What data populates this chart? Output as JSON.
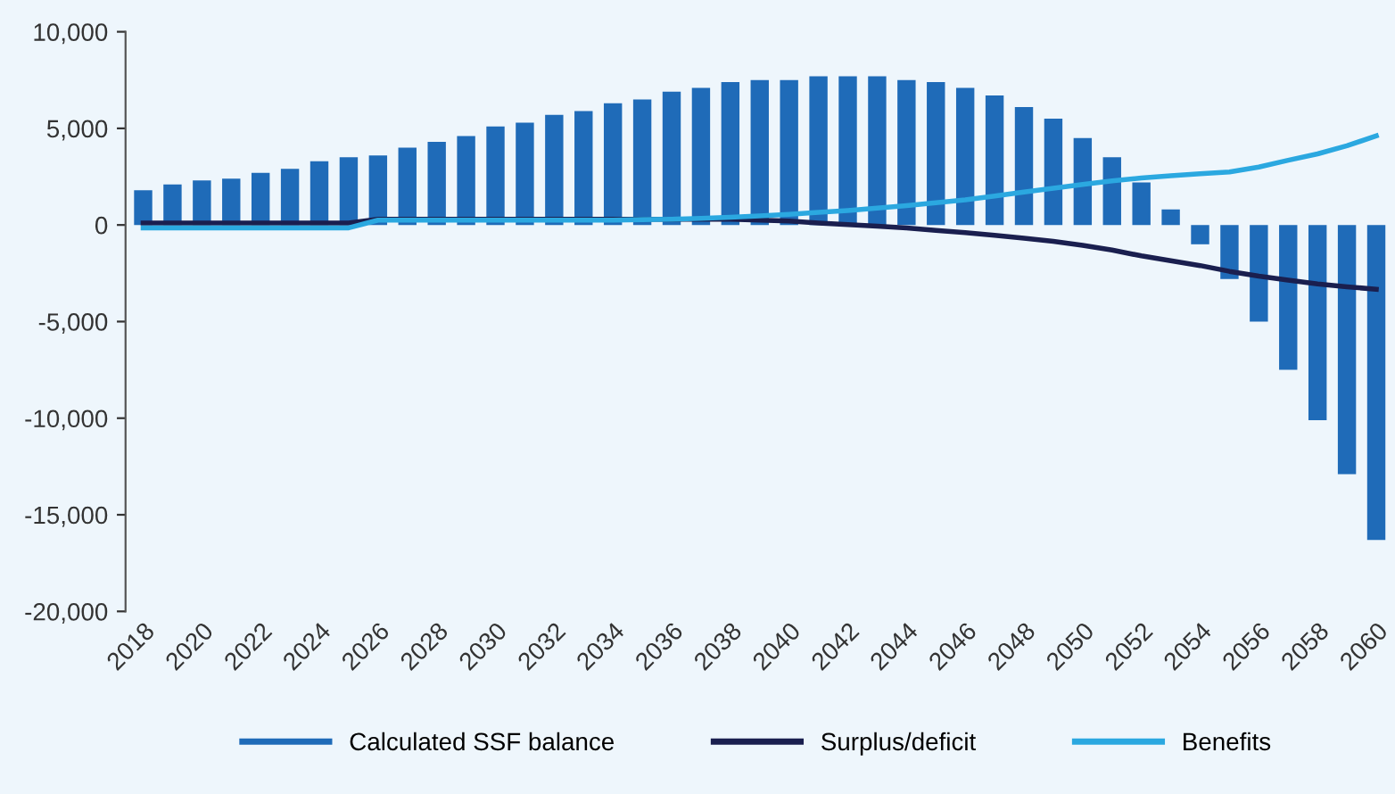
{
  "chart_data": {
    "type": "bar",
    "categories": [
      "2018",
      null,
      "2020",
      null,
      "2022",
      null,
      "2024",
      null,
      "2026",
      null,
      "2028",
      null,
      "2030",
      null,
      "2032",
      null,
      "2034",
      null,
      "2036",
      null,
      "2038",
      null,
      "2040",
      null,
      "2042",
      null,
      "2044",
      null,
      "2046",
      null,
      "2048",
      null,
      "2050",
      null,
      "2052",
      null,
      "2054",
      null,
      "2056",
      null,
      "2058",
      null,
      "2060"
    ],
    "series": [
      {
        "name": "Calculated SSF balance",
        "color": "#1f6bb8",
        "values": [
          1800,
          2100,
          2300,
          2400,
          2700,
          2900,
          3300,
          3500,
          3600,
          4000,
          4300,
          4600,
          5100,
          5300,
          5700,
          5900,
          6300,
          6500,
          6900,
          7100,
          7400,
          7500,
          7500,
          7700,
          7700,
          7700,
          7500,
          7400,
          7100,
          6700,
          6100,
          5500,
          4500,
          3500,
          2200,
          800,
          -1000,
          -2800,
          -5000,
          -7500,
          -10100,
          -12900,
          -16300
        ]
      },
      {
        "name": "Surplus/deficit",
        "type": "line",
        "color": "#1a1f4f",
        "values": [
          100,
          100,
          100,
          100,
          100,
          100,
          100,
          100,
          300,
          300,
          300,
          300,
          300,
          300,
          300,
          300,
          300,
          300,
          300,
          300,
          300,
          250,
          200,
          100,
          20,
          -60,
          -150,
          -280,
          -400,
          -530,
          -680,
          -850,
          -1050,
          -1300,
          -1600,
          -1850,
          -2100,
          -2400,
          -2650,
          -2850,
          -3050,
          -3200,
          -3330
        ]
      },
      {
        "name": "Benefits",
        "type": "line",
        "color": "#2ba8e0",
        "values": [
          -150,
          -150,
          -150,
          -150,
          -150,
          -150,
          -150,
          -150,
          250,
          250,
          250,
          250,
          250,
          250,
          250,
          250,
          250,
          280,
          300,
          340,
          400,
          470,
          550,
          650,
          750,
          870,
          1000,
          1150,
          1300,
          1500,
          1710,
          1900,
          2100,
          2280,
          2430,
          2550,
          2650,
          2740,
          3000,
          3350,
          3680,
          4100,
          4610
        ]
      }
    ],
    "ylim": [
      -20000,
      10000
    ],
    "yticks": [
      {
        "value": -20000,
        "label": "-20,000"
      },
      {
        "value": -15000,
        "label": "-15,000"
      },
      {
        "value": -10000,
        "label": "-10,000"
      },
      {
        "value": -5000,
        "label": "-5,000"
      },
      {
        "value": 0,
        "label": "0"
      },
      {
        "value": 5000,
        "label": "5,000"
      },
      {
        "value": 10000,
        "label": "10,000"
      }
    ],
    "legend": "bottom",
    "grid": false
  }
}
